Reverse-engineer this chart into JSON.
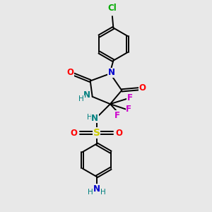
{
  "bg_color": "#e8e8e8",
  "bond_color": "#000000",
  "N_color": "#0000cc",
  "O_color": "#ff0000",
  "S_color": "#cccc00",
  "F_color": "#cc00cc",
  "Cl_color": "#00aa00",
  "NH_color": "#008080",
  "lw": 1.4,
  "fs": 8.5,
  "fs_small": 7.5,
  "xlim": [
    0,
    10
  ],
  "ylim": [
    0,
    10
  ]
}
